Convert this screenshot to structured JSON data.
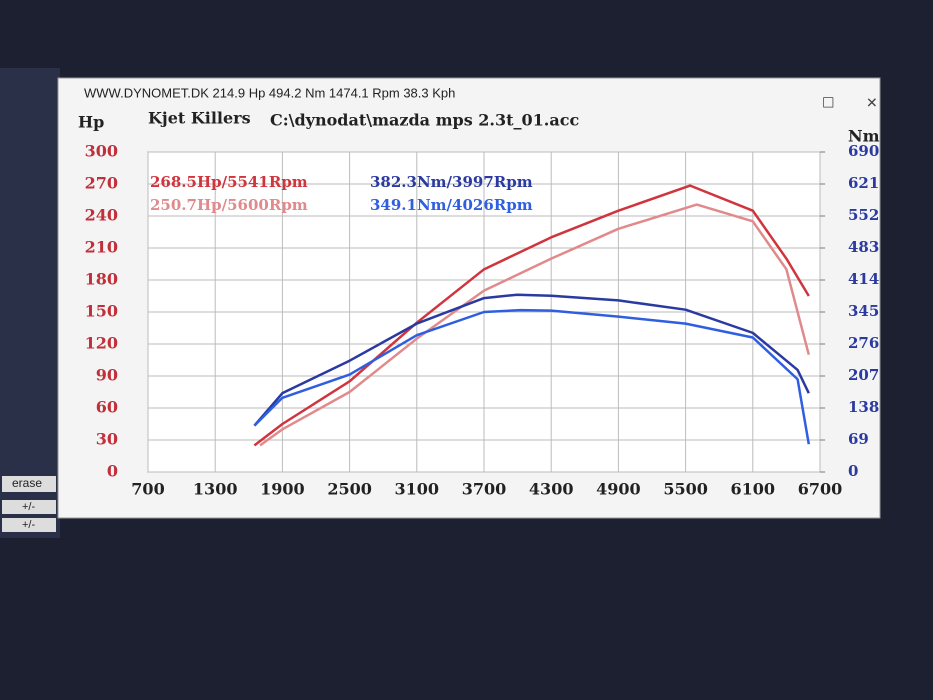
{
  "window": {
    "title": "WWW.DYNOMET.DK  214.9 Hp 494.2 Nm 1474.1 Rpm 38.3 Kph",
    "side_buttons": [
      "erase",
      "+/-",
      "+/-"
    ]
  },
  "chart_data": {
    "type": "line",
    "title": "Kjet Killers",
    "subtitle": "C:\\dynodat\\mazda mps 2.3t_01.acc",
    "y_label": "Hp",
    "y2_label": "Nm",
    "xlim": [
      700,
      6700
    ],
    "xticks": [
      700,
      1300,
      1900,
      2500,
      3100,
      3700,
      4300,
      4900,
      5500,
      6100,
      6700
    ],
    "ylim": [
      0,
      300
    ],
    "yticks": [
      0,
      30,
      60,
      90,
      120,
      150,
      180,
      210,
      240,
      270,
      300
    ],
    "y2lim": [
      0,
      690
    ],
    "y2ticks": [
      0,
      69,
      138,
      207,
      276,
      345,
      414,
      483,
      552,
      621,
      690
    ],
    "grid": true,
    "series": [
      {
        "name": "268.5Hp/5541Rpm",
        "color": "#d0343c",
        "x": [
          1650,
          1900,
          2500,
          3100,
          3700,
          4300,
          4900,
          5541,
          6100,
          6400,
          6600
        ],
        "values": [
          25,
          45,
          85,
          140,
          190,
          220,
          245,
          268.5,
          245,
          200,
          165
        ]
      },
      {
        "name": "250.7Hp/5600Rpm",
        "color": "#e08a8c",
        "x": [
          1700,
          1900,
          2500,
          3100,
          3700,
          4300,
          4900,
          5600,
          6100,
          6400,
          6600
        ],
        "values": [
          25,
          40,
          75,
          125,
          170,
          200,
          228,
          250.7,
          235,
          190,
          110
        ]
      },
      {
        "name": "382.3Nm/3997Rpm",
        "color": "#2a3aa0",
        "axis": "y2",
        "x": [
          1650,
          1900,
          2500,
          3100,
          3700,
          3997,
          4300,
          4900,
          5500,
          6100,
          6500,
          6600
        ],
        "values": [
          100,
          170,
          240,
          320,
          375,
          382.3,
          380,
          370,
          350,
          300,
          220,
          170
        ]
      },
      {
        "name": "349.1Nm/4026Rpm",
        "color": "#2f5fe0",
        "axis": "y2",
        "x": [
          1650,
          1900,
          2500,
          3100,
          3700,
          4026,
          4300,
          4900,
          5500,
          6100,
          6500,
          6600
        ],
        "values": [
          100,
          160,
          210,
          295,
          345,
          349.1,
          348,
          335,
          320,
          290,
          200,
          60
        ]
      }
    ]
  }
}
